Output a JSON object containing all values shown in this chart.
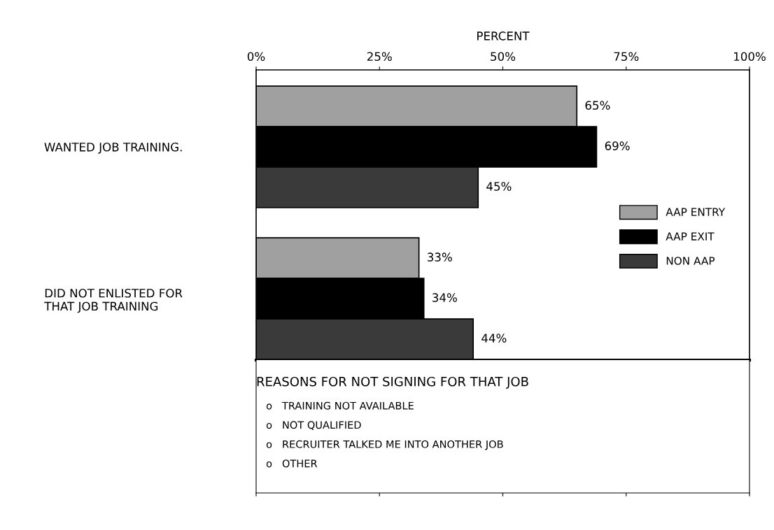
{
  "chart_data": {
    "type": "bar",
    "orientation": "horizontal",
    "xlabel": "PERCENT",
    "categories": [
      "WANTED JOB TRAINING.",
      "DID NOT ENLISTED FOR\nTHAT JOB TRAINING"
    ],
    "series": [
      {
        "name": "AAP ENTRY",
        "color": "#a0a0a0",
        "values": [
          65,
          33
        ],
        "value_labels": [
          "65%",
          "33%"
        ]
      },
      {
        "name": "AAP EXIT",
        "color": "#000000",
        "values": [
          69,
          34
        ],
        "value_labels": [
          "69%",
          "34%"
        ]
      },
      {
        "name": "NON AAP",
        "color": "#3a3a3a",
        "values": [
          45,
          44
        ],
        "value_labels": [
          "45%",
          "44%"
        ]
      }
    ],
    "xlim": [
      0,
      100
    ],
    "xticks": [
      {
        "value": 0,
        "label": "0%"
      },
      {
        "value": 25,
        "label": "25%"
      },
      {
        "value": 50,
        "label": "50%"
      },
      {
        "value": 75,
        "label": "75%"
      },
      {
        "value": 100,
        "label": "100%"
      }
    ],
    "legend": "center right",
    "grid": false,
    "annotations": [
      "REASONS FOR NOT SIGNING FOR THAT JOB",
      "o   TRAINING NOT AVAILABLE",
      "o   NOT QUALIFIED",
      "o   RECRUITER TALKED ME INTO ANOTHER JOB",
      "o   OTHER"
    ]
  }
}
